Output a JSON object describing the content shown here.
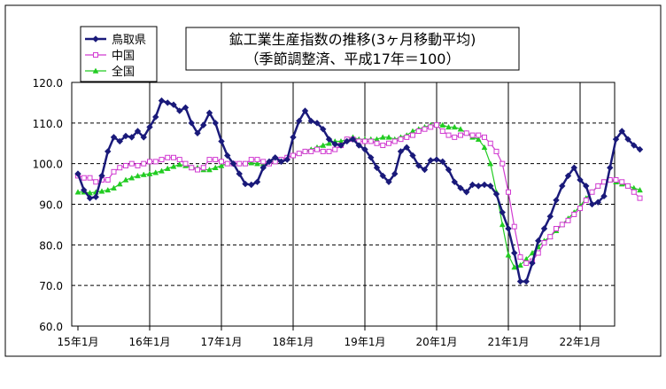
{
  "chart_data": {
    "type": "line",
    "title_line1": "鉱工業生産指数の推移(3ヶ月移動平均)",
    "title_line2": "（季節調整済、平成17年＝100）",
    "ylim": [
      60,
      120
    ],
    "yticks": [
      "60.0",
      "70.0",
      "80.0",
      "90.0",
      "100.0",
      "110.0",
      "120.0"
    ],
    "ytick_values": [
      60,
      70,
      80,
      90,
      100,
      110,
      120
    ],
    "grid": "horizontal-dashed",
    "legend_position": "top-left",
    "x_tick_labels": [
      "15年1月",
      "16年1月",
      "17年1月",
      "18年1月",
      "19年1月",
      "20年1月",
      "21年1月",
      "22年1月"
    ],
    "x_tick_index": [
      0,
      12,
      24,
      36,
      48,
      60,
      72,
      84
    ],
    "series": [
      {
        "name": "鳥取県",
        "color": "#1a1a7a",
        "marker": "diamond",
        "values": [
          97.5,
          93.5,
          91.5,
          91.8,
          97.0,
          103.0,
          106.5,
          105.5,
          106.8,
          106.5,
          108.0,
          106.5,
          109.0,
          111.5,
          115.5,
          115.0,
          114.5,
          113.0,
          113.8,
          110.0,
          107.5,
          109.5,
          112.5,
          110.0,
          105.5,
          102.0,
          100.0,
          97.5,
          95.0,
          94.8,
          95.5,
          99.0,
          100.5,
          101.5,
          100.5,
          101.0,
          106.5,
          110.5,
          113.0,
          110.5,
          110.0,
          108.5,
          106.0,
          104.8,
          104.5,
          105.5,
          106.0,
          104.5,
          103.5,
          101.5,
          99.0,
          97.0,
          95.5,
          97.5,
          103.0,
          104.0,
          102.0,
          99.5,
          98.5,
          100.8,
          101.0,
          100.5,
          98.5,
          95.5,
          94.0,
          93.0,
          94.8,
          94.5,
          94.8,
          94.5,
          92.5,
          88.0,
          84.0,
          78.0,
          71.0,
          71.0,
          75.5,
          81.0,
          84.0,
          87.0,
          91.0,
          94.5,
          97.0,
          99.0,
          96.0,
          94.5,
          90.0,
          90.5,
          92.0,
          99.0,
          106.0,
          108.0,
          106.0,
          104.5,
          103.5
        ]
      },
      {
        "name": "中国",
        "color": "#d13ad1",
        "marker": "square",
        "values": [
          97.0,
          96.5,
          96.5,
          95.5,
          96.0,
          96.0,
          98.0,
          99.0,
          99.5,
          100.0,
          99.5,
          100.0,
          100.5,
          100.5,
          101.0,
          101.5,
          101.5,
          101.0,
          100.0,
          99.0,
          98.5,
          99.0,
          101.0,
          101.0,
          100.5,
          100.0,
          100.0,
          100.0,
          100.0,
          101.0,
          101.0,
          100.5,
          100.0,
          100.5,
          101.0,
          101.5,
          102.0,
          102.5,
          103.0,
          103.0,
          103.5,
          103.0,
          103.0,
          103.5,
          104.5,
          106.0,
          106.0,
          105.5,
          105.5,
          105.5,
          105.0,
          104.5,
          105.0,
          105.5,
          106.0,
          106.5,
          107.0,
          108.0,
          108.5,
          109.0,
          109.5,
          108.0,
          107.0,
          106.5,
          107.0,
          107.5,
          107.0,
          107.0,
          106.5,
          105.0,
          103.0,
          100.0,
          93.0,
          84.5,
          77.0,
          75.5,
          76.0,
          78.0,
          80.5,
          82.0,
          84.0,
          85.0,
          86.0,
          87.5,
          89.0,
          91.0,
          93.0,
          94.5,
          95.5,
          96.0,
          96.0,
          95.5,
          94.5,
          93.0,
          91.5
        ]
      },
      {
        "name": "全国",
        "color": "#22cc22",
        "marker": "triangle",
        "values": [
          93.0,
          93.0,
          92.8,
          93.0,
          93.2,
          93.5,
          94.0,
          95.0,
          96.0,
          96.5,
          97.0,
          97.3,
          97.5,
          97.8,
          98.2,
          98.8,
          99.3,
          99.8,
          99.5,
          99.0,
          99.0,
          98.5,
          98.5,
          99.0,
          99.5,
          100.0,
          100.0,
          100.0,
          100.0,
          100.2,
          100.0,
          100.0,
          100.5,
          100.5,
          101.0,
          101.5,
          102.0,
          102.5,
          103.0,
          103.5,
          104.0,
          104.5,
          105.0,
          105.5,
          105.5,
          106.0,
          106.5,
          106.0,
          106.0,
          106.0,
          106.0,
          106.5,
          106.5,
          106.0,
          106.5,
          107.0,
          108.0,
          108.5,
          109.0,
          109.5,
          109.5,
          109.5,
          109.0,
          109.0,
          108.5,
          107.5,
          106.5,
          106.0,
          104.0,
          100.0,
          93.0,
          85.0,
          77.5,
          74.5,
          75.0,
          76.5,
          78.0,
          79.5,
          81.0,
          82.0,
          83.5,
          85.0,
          86.5,
          88.0,
          89.5,
          91.5,
          93.0,
          94.5,
          95.5,
          96.0,
          95.5,
          95.0,
          94.5,
          94.0,
          93.5
        ]
      }
    ]
  }
}
